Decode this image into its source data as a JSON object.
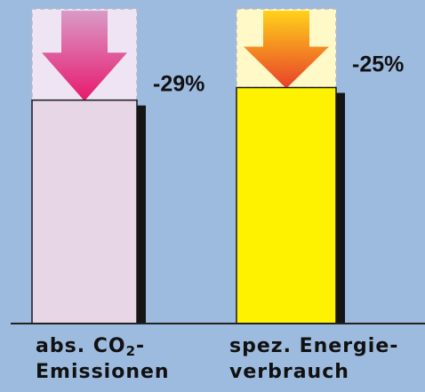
{
  "chart_data": {
    "type": "bar",
    "categories": [
      "abs. CO2-Emissionen",
      "spez. Energieverbrauch"
    ],
    "series": [
      {
        "values": [
          71,
          75
        ]
      }
    ],
    "baseline_values": [
      100,
      100
    ],
    "changes": [
      "-29%",
      "-25%"
    ],
    "ylim": [
      0,
      100
    ],
    "grid": false,
    "legend": "none"
  },
  "labels": {
    "bar1": {
      "line1_main": "abs. CO",
      "line1_sub": "2",
      "line1_tail": "-",
      "line2": "Emissionen"
    },
    "bar2": {
      "line1": "spez. Energie-",
      "line2": "verbrauch"
    }
  },
  "colors": {
    "background": "#9dbbdf",
    "bar1_fill": "#e6d6e6",
    "bar1_ghost": "#efe4f3",
    "bar1_arrow_top": "#d99bc8",
    "bar1_arrow_bottom": "#e8186d",
    "bar2_fill": "#fff200",
    "bar2_ghost": "#fff9c7",
    "bar2_arrow_top": "#ffd21a",
    "bar2_arrow_bottom": "#e8402a",
    "shadow": "#151515",
    "axis": "#222222"
  }
}
